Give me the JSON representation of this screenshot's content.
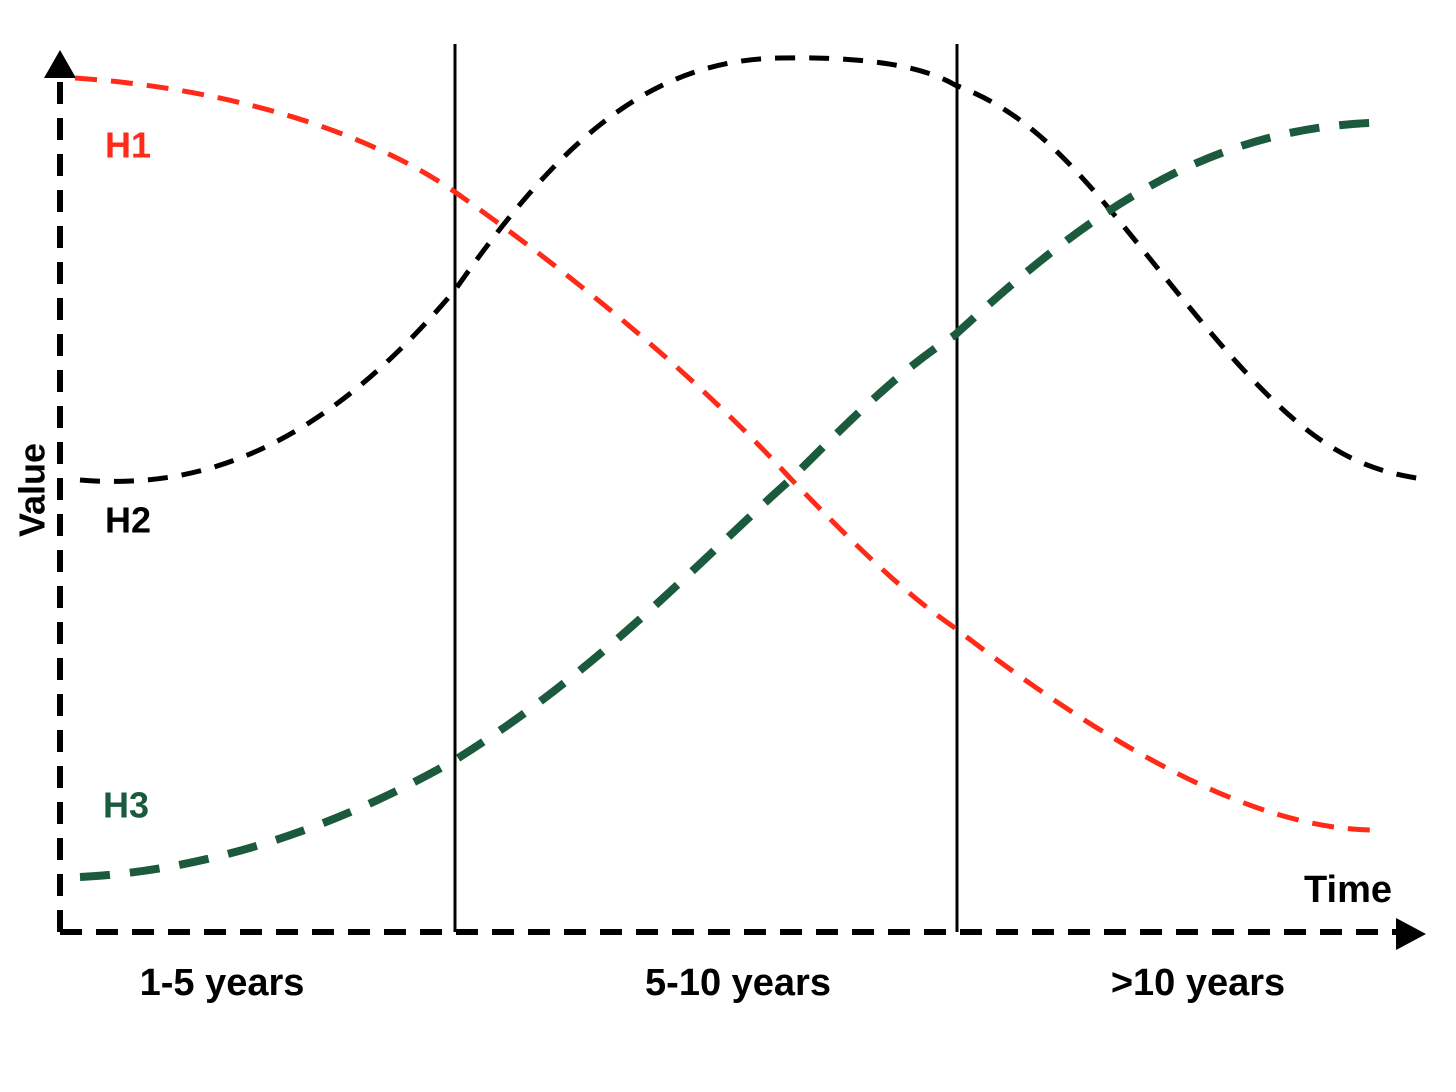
{
  "axes": {
    "y_label": "Value",
    "x_label": "Time"
  },
  "phases": [
    "1-5 years",
    "5-10 years",
    ">10 years"
  ],
  "curves": [
    {
      "label": "H1",
      "color": "#ff2a17"
    },
    {
      "label": "H2",
      "color": "#000000"
    },
    {
      "label": "H3",
      "color": "#1b5a3c"
    }
  ]
}
